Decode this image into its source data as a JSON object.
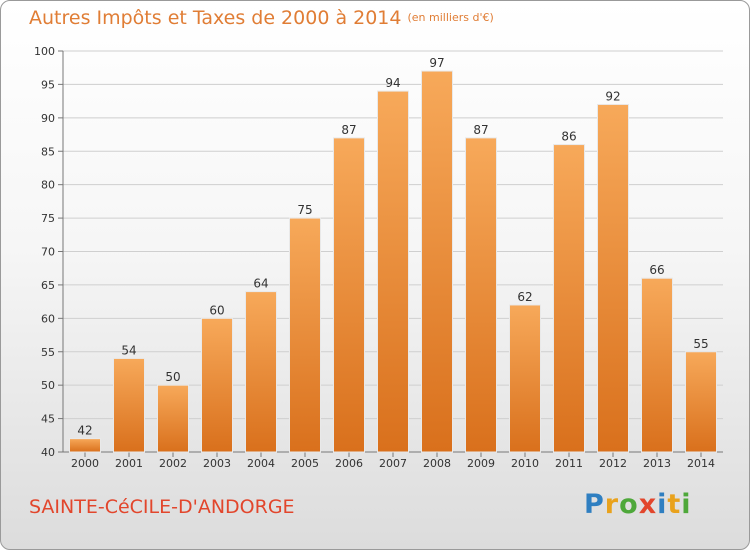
{
  "title": "Autres Impôts et Taxes de 2000 à 2014",
  "unit_note": "(en milliers d'€)",
  "city": "SAINTE-CéCILE-D'ANDORGE",
  "logo": {
    "text": "Proxiti",
    "letters": [
      {
        "char": "P",
        "color": "#2f7fc1"
      },
      {
        "char": "r",
        "color": "#e9a21c"
      },
      {
        "char": "o",
        "color": "#4ea83a"
      },
      {
        "char": "x",
        "color": "#e2462c"
      },
      {
        "char": "i",
        "color": "#2f7fc1"
      },
      {
        "char": "t",
        "color": "#e9a21c"
      },
      {
        "char": "i",
        "color": "#4ea83a"
      }
    ]
  },
  "colors": {
    "title": "#e07d35",
    "city": "#e2462c",
    "bar_light": "#f7a95a",
    "bar_dark": "#d9701c"
  },
  "chart_data": {
    "type": "bar",
    "categories": [
      "2000",
      "2001",
      "2002",
      "2003",
      "2004",
      "2005",
      "2006",
      "2007",
      "2008",
      "2009",
      "2010",
      "2011",
      "2012",
      "2013",
      "2014"
    ],
    "values": [
      42,
      54,
      50,
      60,
      64,
      75,
      87,
      94,
      97,
      87,
      62,
      86,
      92,
      66,
      55
    ],
    "ylim": [
      40,
      100
    ],
    "yticks": [
      40,
      45,
      50,
      55,
      60,
      65,
      70,
      75,
      80,
      85,
      90,
      95,
      100
    ],
    "grid": true
  }
}
